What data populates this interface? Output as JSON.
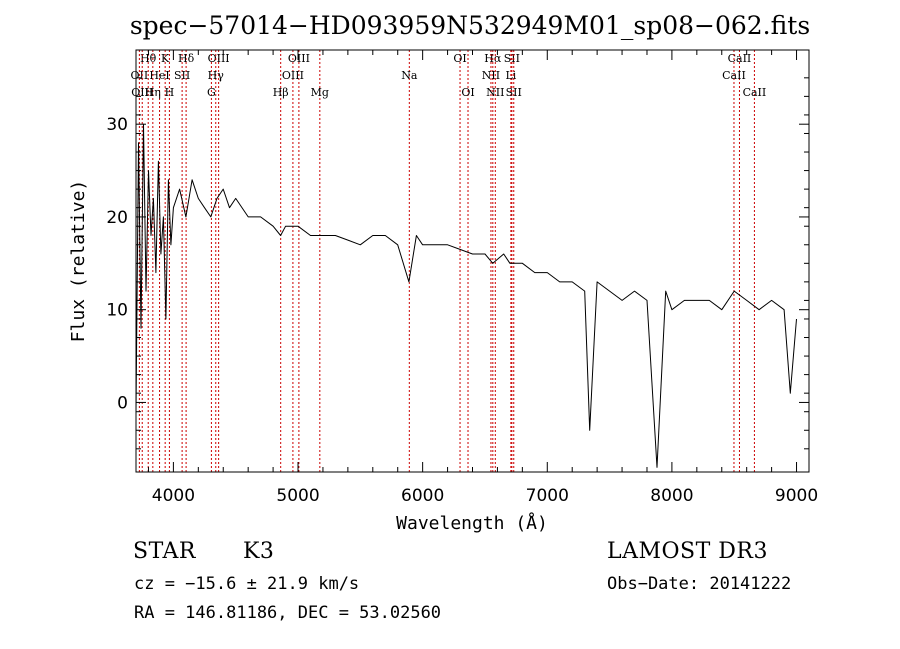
{
  "chart_data": {
    "type": "line",
    "title": "spec−57014−HD093959N532949M01_sp08−062.fits",
    "xlabel": "Wavelength (Å)",
    "ylabel": "Flux (relative)",
    "xlim": [
      3700,
      9100
    ],
    "ylim": [
      -7.5,
      38
    ],
    "xticks": [
      4000,
      5000,
      6000,
      7000,
      8000,
      9000
    ],
    "yticks": [
      0,
      10,
      20,
      30
    ],
    "line_color": "#000000",
    "marker_color": "#cc0000",
    "series": [
      {
        "name": "flux",
        "x": [
          3700,
          3720,
          3740,
          3760,
          3780,
          3800,
          3820,
          3840,
          3860,
          3880,
          3900,
          3920,
          3940,
          3960,
          3980,
          4000,
          4050,
          4100,
          4150,
          4200,
          4250,
          4300,
          4350,
          4400,
          4450,
          4500,
          4600,
          4700,
          4800,
          4860,
          4900,
          5000,
          5100,
          5200,
          5300,
          5400,
          5500,
          5600,
          5700,
          5800,
          5890,
          5950,
          6000,
          6100,
          6200,
          6300,
          6400,
          6500,
          6563,
          6650,
          6700,
          6800,
          6900,
          7000,
          7100,
          7200,
          7300,
          7340,
          7400,
          7500,
          7600,
          7700,
          7800,
          7880,
          7950,
          8000,
          8100,
          8200,
          8300,
          8400,
          8500,
          8600,
          8700,
          8800,
          8900,
          8950,
          9000
        ],
        "y": [
          -1,
          28,
          8,
          30,
          12,
          25,
          18,
          22,
          14,
          26,
          16,
          20,
          9,
          24,
          17,
          21,
          23,
          20,
          24,
          22,
          21,
          20,
          22,
          23,
          21,
          22,
          20,
          20,
          19,
          18,
          19,
          19,
          18,
          18,
          18,
          17.5,
          17,
          18,
          18,
          17,
          13,
          18,
          17,
          17,
          17,
          16.5,
          16,
          16,
          15,
          16,
          15,
          15,
          14,
          14,
          13,
          13,
          12,
          -3,
          13,
          12,
          11,
          12,
          11,
          -7,
          12,
          10,
          11,
          11,
          11,
          10,
          12,
          11,
          10,
          11,
          10,
          1,
          9
        ]
      }
    ],
    "line_markers": [
      {
        "label": "Hθ",
        "x": 3798,
        "row": 1
      },
      {
        "label": "OII",
        "x": 3727,
        "row": 2
      },
      {
        "label": "OIII",
        "x": 3750,
        "row": 3
      },
      {
        "label": "K",
        "x": 3934,
        "row": 1
      },
      {
        "label": "HeI",
        "x": 3889,
        "row": 2
      },
      {
        "label": "Hη",
        "x": 3835,
        "row": 3
      },
      {
        "label": "H",
        "x": 3968,
        "row": 3
      },
      {
        "label": "Hδ",
        "x": 4102,
        "row": 1
      },
      {
        "label": "SII",
        "x": 4070,
        "row": 2
      },
      {
        "label": "OIII",
        "x": 4363,
        "row": 1
      },
      {
        "label": "Hγ",
        "x": 4340,
        "row": 2
      },
      {
        "label": "G",
        "x": 4305,
        "row": 3
      },
      {
        "label": "Hβ",
        "x": 4861,
        "row": 3
      },
      {
        "label": "OIII",
        "x": 5007,
        "row": 1
      },
      {
        "label": "OIII",
        "x": 4959,
        "row": 2
      },
      {
        "label": "Mg",
        "x": 5175,
        "row": 3
      },
      {
        "label": "Na",
        "x": 5893,
        "row": 2
      },
      {
        "label": "OI",
        "x": 6300,
        "row": 1
      },
      {
        "label": "OI",
        "x": 6364,
        "row": 3
      },
      {
        "label": "Hα",
        "x": 6563,
        "row": 1
      },
      {
        "label": "SII",
        "x": 6716,
        "row": 1
      },
      {
        "label": "NII",
        "x": 6548,
        "row": 2
      },
      {
        "label": "Li",
        "x": 6708,
        "row": 2
      },
      {
        "label": "NII",
        "x": 6583,
        "row": 3
      },
      {
        "label": "SII",
        "x": 6731,
        "row": 3
      },
      {
        "label": "CaII",
        "x": 8542,
        "row": 1
      },
      {
        "label": "CaII",
        "x": 8498,
        "row": 2
      },
      {
        "label": "CaII",
        "x": 8662,
        "row": 3
      }
    ]
  },
  "info": {
    "class_label": "STAR",
    "subclass": "K3",
    "survey": "LAMOST DR3",
    "redshift": "cz = −15.6 ± 21.9 km/s",
    "obs_date": "Obs−Date: 20141222",
    "coords": "RA = 146.81186, DEC =  53.02560"
  }
}
